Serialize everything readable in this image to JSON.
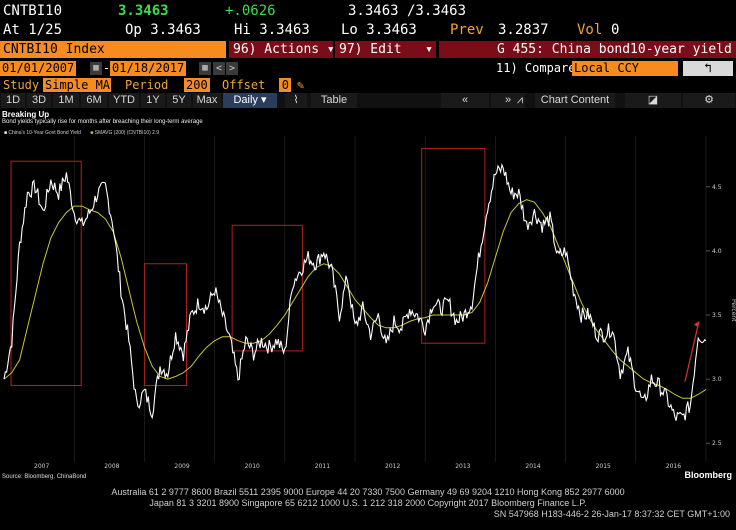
{
  "ticker_row": {
    "symbol": "CNTBI10",
    "last": "3.3463",
    "change": "+.0626",
    "bid_ask": "3.3463 /3.3463"
  },
  "quote_row": {
    "at": "At 1/25",
    "open": "Op 3.3463",
    "high": "Hi 3.3463",
    "low": "Lo 3.3463",
    "prev_label": "Prev",
    "prev_value": "3.2837",
    "vol_label": "Vol",
    "vol_value": "0"
  },
  "command_row": {
    "security": "CNTBI10 Index",
    "actions": "96) Actions ▾",
    "edit": "97) Edit",
    "function_title": "G 455: China bond10-year yield"
  },
  "range_row": {
    "start_date": "01/01/2007",
    "end_date": "01/18/2017",
    "compare_label": "11) Compare",
    "compare_value": "Local CCY"
  },
  "study_row": {
    "study_label": "Study",
    "study_value": "Simple MA",
    "period_label": "Period",
    "period_value": "200",
    "offset_label": "Offset",
    "offset_value": "0"
  },
  "toolbar": {
    "periods": [
      "1D",
      "3D",
      "1M",
      "6M",
      "YTD",
      "1Y",
      "5Y",
      "Max"
    ],
    "frequency": "Daily ▾",
    "table": "Table",
    "chart_content": "Chart Content"
  },
  "chart_header": {
    "title": "Breaking Up",
    "subtitle": "Bond yields typically rise for months after breaching their long-term average",
    "legend_price": "China's 10-Year Govt Bond Yield",
    "legend_ma": "SMAVG (200) (CNTBI10) 2.9"
  },
  "colors": {
    "price": "#ffffff",
    "ma": "#c8c632",
    "boxes": "#b32121",
    "arrow": "#d9352b"
  },
  "chart_data": {
    "type": "line",
    "x_labels": [
      "2007",
      "2008",
      "2009",
      "2010",
      "2011",
      "2012",
      "2013",
      "2014",
      "2015",
      "2016"
    ],
    "y_ticks": [
      "4.5",
      "4.0",
      "3.5",
      "3.0",
      "2.5"
    ],
    "y_label": "Percent",
    "ylim": [
      2.4,
      4.85
    ],
    "series": [
      {
        "values": [
          3.0,
          3.3,
          4.05,
          4.45,
          4.5,
          4.3,
          4.55,
          4.45,
          4.6,
          4.3,
          4.2,
          4.3,
          4.45,
          4.5,
          4.2,
          3.7,
          3.3,
          2.8,
          2.9,
          2.75,
          3.1,
          3.05,
          3.35,
          3.2,
          3.5,
          3.6,
          3.55,
          3.7,
          3.5,
          3.3,
          3.0,
          3.3,
          3.2,
          3.3,
          3.25,
          3.3,
          3.2,
          3.75,
          3.85,
          3.95,
          3.9,
          4.0,
          3.85,
          3.5,
          3.8,
          3.4,
          3.55,
          3.35,
          3.5,
          3.25,
          3.45,
          3.4,
          3.55,
          3.5,
          3.4,
          3.6,
          3.55,
          3.6,
          3.45,
          3.5,
          3.6,
          4.0,
          4.35,
          4.6,
          4.65,
          4.45,
          4.45,
          4.2,
          4.3,
          4.2,
          4.25,
          3.95,
          4.0,
          3.7,
          3.5,
          3.5,
          3.35,
          3.35,
          3.4,
          3.05,
          3.2,
          2.95,
          2.8,
          3.0,
          2.95,
          2.85,
          2.7,
          2.7,
          2.8,
          3.35,
          3.3
        ]
      },
      {
        "values": [
          3.0,
          3.05,
          3.15,
          3.4,
          3.65,
          3.9,
          4.1,
          4.22,
          4.3,
          4.35,
          4.35,
          4.32,
          4.3,
          4.25,
          4.15,
          3.95,
          3.7,
          3.45,
          3.25,
          3.1,
          3.02,
          3.0,
          3.02,
          3.05,
          3.1,
          3.18,
          3.25,
          3.3,
          3.33,
          3.33,
          3.3,
          3.28,
          3.28,
          3.3,
          3.35,
          3.42,
          3.5,
          3.6,
          3.7,
          3.8,
          3.87,
          3.9,
          3.88,
          3.82,
          3.72,
          3.62,
          3.55,
          3.48,
          3.42,
          3.4,
          3.4,
          3.42,
          3.45,
          3.47,
          3.48,
          3.5,
          3.5,
          3.5,
          3.5,
          3.5,
          3.52,
          3.6,
          3.75,
          3.95,
          4.15,
          4.3,
          4.37,
          4.4,
          4.38,
          4.3,
          4.2,
          4.05,
          3.9,
          3.75,
          3.6,
          3.48,
          3.38,
          3.3,
          3.22,
          3.15,
          3.1,
          3.05,
          3.0,
          2.97,
          2.95,
          2.92,
          2.88,
          2.85,
          2.85,
          2.88,
          2.92
        ]
      }
    ],
    "highlight_ranges": [
      {
        "x": [
          0.1,
          1.1
        ],
        "y": [
          2.95,
          4.7
        ]
      },
      {
        "x": [
          2.0,
          2.6
        ],
        "y": [
          2.95,
          3.9
        ]
      },
      {
        "x": [
          3.25,
          4.25
        ],
        "y": [
          3.22,
          4.2
        ]
      },
      {
        "x": [
          5.95,
          6.85
        ],
        "y": [
          3.28,
          4.8
        ]
      }
    ],
    "source": "Source: Bloomberg, ChinaBond",
    "brand": "Bloomberg"
  },
  "footer": {
    "line1": "Australia 61 2 9777 8600 Brazil 5511 2395 9000 Europe 44 20 7330 7500 Germany 49 69 9204 1210 Hong Kong 852 2977 6000",
    "line2": "Japan 81 3 3201 8900       Singapore 65 6212 1000       U.S. 1 212 318 2000          Copyright 2017 Bloomberg Finance L.P.",
    "line3": "SN 547968 H183-446-2 26-Jan-17  8:37:32 CET  GMT+1:00"
  }
}
